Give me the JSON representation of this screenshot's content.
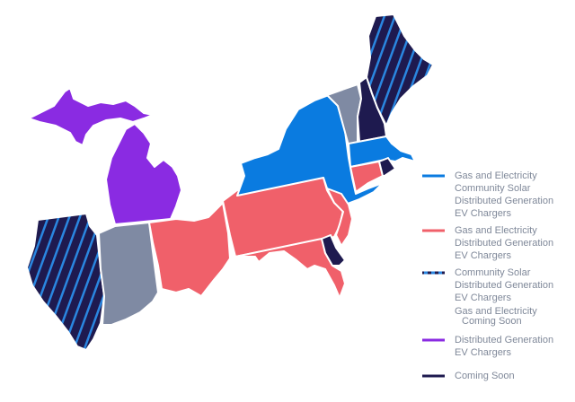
{
  "legend": [
    {
      "lines": [
        "Gas and Electricity",
        "Community Solar",
        "Distributed Generation",
        "EV Chargers"
      ]
    },
    {
      "lines": [
        "Gas and Electricity",
        "Distributed Generation",
        "EV Chargers"
      ]
    },
    {
      "lines": [
        "Community Solar",
        "Distributed Generation",
        "EV Chargers",
        "Gas and Electricity",
        "Coming Soon"
      ]
    },
    {
      "lines": [
        "Distributed Generation",
        "EV Chargers"
      ]
    },
    {
      "lines": [
        "Coming Soon"
      ]
    }
  ]
}
